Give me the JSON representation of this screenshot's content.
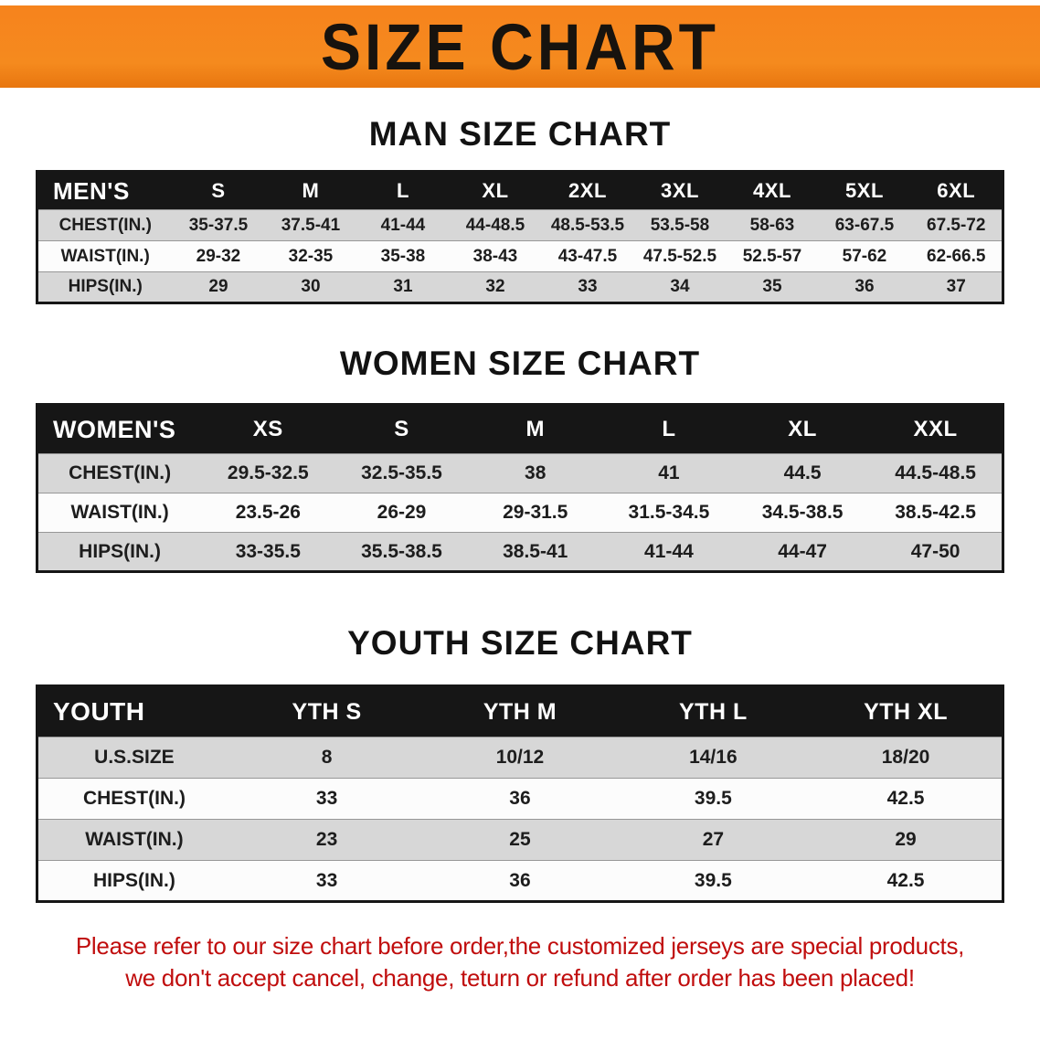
{
  "banner": {
    "title": "SIZE CHART"
  },
  "sections": [
    {
      "heading": "MAN SIZE CHART",
      "table": {
        "header": [
          "MEN'S",
          "S",
          "M",
          "L",
          "XL",
          "2XL",
          "3XL",
          "4XL",
          "5XL",
          "6XL"
        ],
        "rows": [
          {
            "label": "CHEST(IN.)",
            "values": [
              "35-37.5",
              "37.5-41",
              "41-44",
              "44-48.5",
              "48.5-53.5",
              "53.5-58",
              "58-63",
              "63-67.5",
              "67.5-72"
            ]
          },
          {
            "label": "WAIST(IN.)",
            "values": [
              "29-32",
              "32-35",
              "35-38",
              "38-43",
              "43-47.5",
              "47.5-52.5",
              "52.5-57",
              "57-62",
              "62-66.5"
            ]
          },
          {
            "label": "HIPS(IN.)",
            "values": [
              "29",
              "30",
              "31",
              "32",
              "33",
              "34",
              "35",
              "36",
              "37"
            ]
          }
        ]
      }
    },
    {
      "heading": "WOMEN SIZE CHART",
      "table": {
        "header": [
          "WOMEN'S",
          "XS",
          "S",
          "M",
          "L",
          "XL",
          "XXL"
        ],
        "rows": [
          {
            "label": "CHEST(IN.)",
            "values": [
              "29.5-32.5",
              "32.5-35.5",
              "38",
              "41",
              "44.5",
              "44.5-48.5"
            ]
          },
          {
            "label": "WAIST(IN.)",
            "values": [
              "23.5-26",
              "26-29",
              "29-31.5",
              "31.5-34.5",
              "34.5-38.5",
              "38.5-42.5"
            ]
          },
          {
            "label": "HIPS(IN.)",
            "values": [
              "33-35.5",
              "35.5-38.5",
              "38.5-41",
              "41-44",
              "44-47",
              "47-50"
            ]
          }
        ]
      }
    },
    {
      "heading": "YOUTH SIZE CHART",
      "table": {
        "header": [
          "YOUTH",
          "YTH S",
          "YTH M",
          "YTH L",
          "YTH XL"
        ],
        "rows": [
          {
            "label": "U.S.SIZE",
            "values": [
              "8",
              "10/12",
              "14/16",
              "18/20"
            ]
          },
          {
            "label": "CHEST(IN.)",
            "values": [
              "33",
              "36",
              "39.5",
              "42.5"
            ]
          },
          {
            "label": "WAIST(IN.)",
            "values": [
              "23",
              "25",
              "27",
              "29"
            ]
          },
          {
            "label": "HIPS(IN.)",
            "values": [
              "33",
              "36",
              "39.5",
              "42.5"
            ]
          }
        ]
      }
    }
  ],
  "footer": {
    "lines": [
      "Please refer to our size chart before order,the customized jerseys are special products,",
      "we don't accept cancel, change, teturn or refund after order has been placed!"
    ]
  },
  "colors": {
    "banner_orange": "#f6831d",
    "header_black": "#161616",
    "row_gray": "#d7d7d7",
    "notice_red": "#c00d0d"
  }
}
